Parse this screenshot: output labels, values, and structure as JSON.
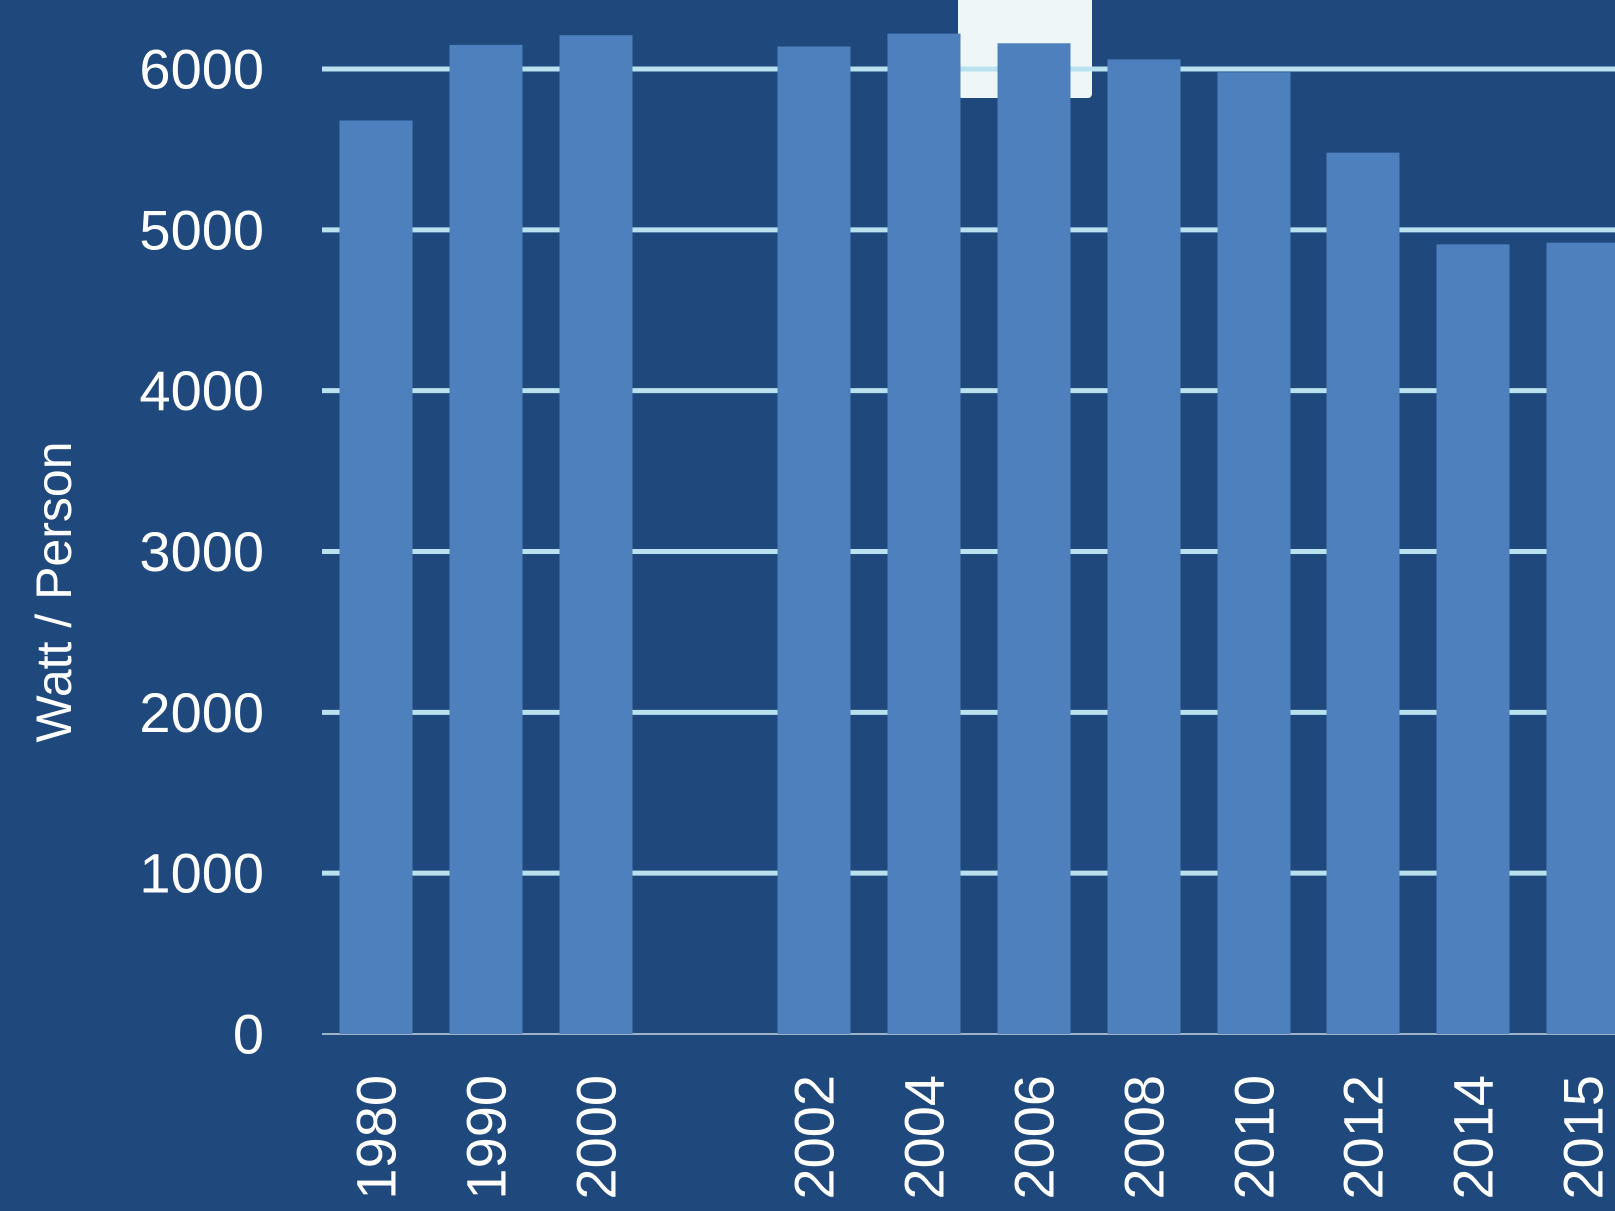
{
  "chart_data": {
    "type": "bar",
    "ylabel": "Watt / Person",
    "xlabel": "",
    "ylim": [
      0,
      6000
    ],
    "yticks": [
      0,
      1000,
      2000,
      3000,
      4000,
      5000,
      6000
    ],
    "grid": true,
    "categories": [
      "1980",
      "1990",
      "2000",
      "2002",
      "2004",
      "2006",
      "2008",
      "2010",
      "2012",
      "2014",
      "2015"
    ],
    "values": [
      5680,
      6150,
      6210,
      6140,
      6220,
      6160,
      6060,
      5980,
      5480,
      4910,
      4920
    ]
  },
  "colors": {
    "background": "#1f487c",
    "bar": "#4d80bd",
    "grid": "#b9e2ee",
    "axis": "#9fb3c8",
    "text": "#ffffff",
    "overlay": "#eef6f8"
  }
}
